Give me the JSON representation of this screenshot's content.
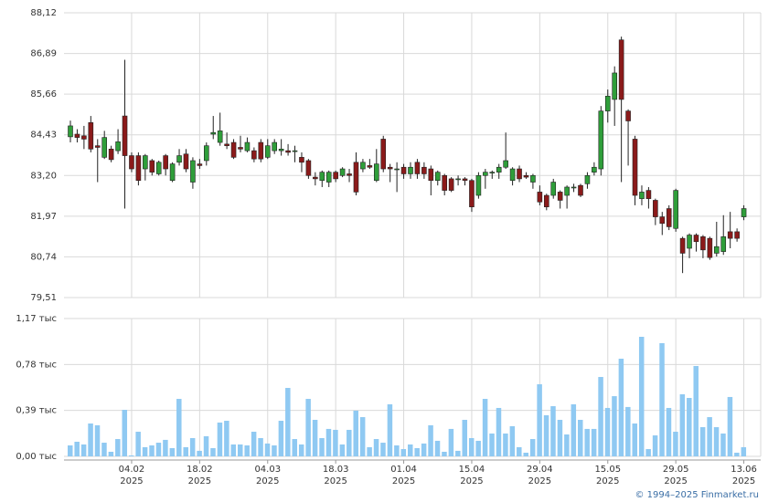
{
  "chart_data": [
    {
      "type": "candlestick",
      "up_color": "#2f9e3a",
      "down_color": "#8b1a1a",
      "grid": true,
      "ylim": [
        79.51,
        88.12
      ],
      "yticks": [
        {
          "value": 88.12,
          "label": "88,12"
        },
        {
          "value": 86.89,
          "label": "86,89"
        },
        {
          "value": 85.66,
          "label": "85,66"
        },
        {
          "value": 84.43,
          "label": "84,43"
        },
        {
          "value": 83.2,
          "label": "83,20"
        },
        {
          "value": 81.97,
          "label": "81,97"
        },
        {
          "value": 80.74,
          "label": "80,74"
        },
        {
          "value": 79.51,
          "label": "79,51"
        }
      ],
      "open": [
        84.37,
        84.45,
        84.4,
        84.8,
        84.1,
        83.75,
        84.0,
        83.95,
        85.0,
        83.8,
        83.8,
        83.4,
        83.65,
        83.25,
        83.8,
        83.05,
        83.6,
        83.85,
        83.0,
        83.55,
        83.65,
        84.45,
        84.2,
        84.15,
        84.2,
        84.05,
        83.95,
        83.95,
        84.2,
        83.75,
        83.95,
        83.95,
        83.95,
        83.95,
        83.75,
        83.65,
        83.15,
        83.05,
        83.0,
        83.3,
        83.2,
        83.25,
        83.6,
        83.4,
        83.5,
        83.05,
        84.3,
        83.45,
        83.4,
        83.45,
        83.25,
        83.6,
        83.45,
        83.4,
        83.05,
        83.2,
        83.1,
        83.1,
        83.1,
        83.05,
        82.6,
        83.2,
        83.3,
        83.3,
        83.45,
        83.05,
        83.4,
        83.2,
        83.0,
        82.7,
        82.6,
        82.6,
        82.7,
        82.6,
        82.85,
        82.9,
        82.95,
        83.3,
        83.4,
        85.15,
        85.5,
        87.3,
        85.15,
        84.3,
        82.5,
        82.75,
        82.45,
        81.95,
        82.2,
        81.6,
        81.3,
        81.0,
        81.4,
        81.35,
        81.3,
        80.85,
        80.9,
        81.5,
        81.5,
        81.95
      ],
      "high": [
        84.86,
        84.6,
        84.7,
        85.0,
        84.3,
        84.55,
        84.1,
        84.6,
        86.7,
        83.9,
        83.9,
        83.85,
        83.7,
        83.65,
        83.85,
        83.6,
        84.0,
        84.0,
        83.75,
        83.7,
        84.2,
        85.0,
        85.1,
        84.5,
        84.3,
        84.4,
        84.35,
        84.05,
        84.3,
        84.3,
        84.3,
        84.3,
        84.15,
        84.1,
        83.9,
        83.7,
        83.3,
        83.35,
        83.35,
        83.35,
        83.45,
        83.4,
        83.9,
        83.7,
        83.7,
        84.0,
        84.4,
        83.55,
        83.6,
        83.55,
        83.6,
        83.7,
        83.6,
        83.5,
        83.35,
        83.25,
        83.15,
        83.2,
        83.15,
        83.1,
        83.3,
        83.4,
        83.35,
        83.55,
        84.5,
        83.45,
        83.5,
        83.3,
        83.25,
        82.9,
        82.65,
        83.1,
        82.75,
        82.9,
        82.95,
        82.95,
        83.3,
        83.6,
        85.3,
        85.8,
        86.5,
        87.4,
        85.2,
        84.4,
        82.9,
        82.85,
        82.5,
        82.1,
        82.3,
        82.8,
        81.35,
        81.45,
        81.45,
        81.4,
        81.35,
        81.8,
        82.0,
        82.1,
        81.6,
        82.3
      ],
      "low": [
        84.2,
        84.2,
        84.0,
        83.9,
        83.0,
        83.7,
        83.6,
        83.85,
        82.2,
        83.3,
        82.9,
        83.05,
        83.2,
        83.2,
        83.2,
        83.0,
        83.5,
        83.3,
        82.8,
        83.4,
        83.5,
        84.3,
        84.1,
        84.0,
        83.7,
        83.9,
        83.9,
        83.6,
        83.6,
        83.7,
        83.85,
        83.8,
        83.8,
        83.6,
        83.3,
        83.1,
        82.9,
        82.85,
        82.85,
        83.0,
        83.15,
        83.0,
        82.6,
        83.3,
        83.4,
        83.0,
        83.3,
        83.0,
        82.7,
        83.1,
        83.1,
        83.1,
        83.1,
        82.6,
        82.9,
        82.6,
        82.7,
        82.9,
        82.9,
        82.1,
        82.5,
        82.8,
        83.1,
        83.1,
        83.4,
        82.9,
        83.0,
        83.1,
        82.8,
        82.3,
        82.15,
        82.5,
        82.2,
        82.2,
        82.7,
        82.55,
        82.8,
        83.2,
        83.2,
        84.8,
        84.7,
        83.0,
        83.5,
        82.3,
        82.3,
        82.2,
        81.7,
        81.4,
        81.55,
        81.5,
        80.25,
        80.7,
        80.9,
        80.7,
        80.65,
        80.75,
        80.8,
        81.0,
        81.2,
        81.85
      ],
      "close": [
        84.7,
        84.35,
        84.3,
        84.0,
        84.05,
        84.35,
        83.68,
        84.22,
        83.8,
        83.4,
        83.05,
        83.8,
        83.3,
        83.6,
        83.4,
        83.55,
        83.8,
        83.4,
        83.65,
        83.5,
        84.1,
        84.5,
        84.55,
        84.1,
        83.75,
        84.0,
        84.2,
        83.7,
        83.7,
        84.1,
        84.2,
        84.0,
        83.9,
        83.95,
        83.6,
        83.2,
        83.1,
        83.3,
        83.3,
        83.1,
        83.4,
        83.2,
        82.7,
        83.6,
        83.45,
        83.55,
        83.4,
        83.4,
        83.4,
        83.25,
        83.45,
        83.25,
        83.25,
        83.05,
        83.3,
        82.75,
        82.75,
        83.1,
        83.05,
        82.25,
        83.2,
        83.3,
        83.3,
        83.45,
        83.65,
        83.4,
        83.1,
        83.15,
        83.2,
        82.4,
        82.25,
        83.0,
        82.45,
        82.85,
        82.85,
        82.6,
        83.2,
        83.45,
        85.15,
        85.6,
        86.3,
        85.5,
        84.85,
        82.6,
        82.7,
        82.5,
        81.95,
        81.75,
        81.65,
        82.75,
        80.85,
        81.4,
        81.2,
        80.95,
        80.72,
        81.05,
        81.35,
        81.3,
        81.3,
        82.2
      ]
    },
    {
      "type": "bar",
      "color": "#8fc9f2",
      "grid": true,
      "ylim": [
        0,
        1170
      ],
      "yticks": [
        {
          "value": 0,
          "label": "0,00 тыс"
        },
        {
          "value": 390,
          "label": "0,39 тыс"
        },
        {
          "value": 780,
          "label": "0,78 тыс"
        },
        {
          "value": 1170,
          "label": "1,17 тыс"
        }
      ],
      "categories": [
        null,
        null,
        null,
        null,
        null,
        null,
        null,
        null,
        null,
        "04.02",
        null,
        null,
        null,
        null,
        null,
        null,
        null,
        null,
        null,
        "18.02",
        null,
        null,
        null,
        null,
        null,
        null,
        null,
        null,
        null,
        "04.03",
        null,
        null,
        null,
        null,
        null,
        null,
        null,
        null,
        null,
        "18.03",
        null,
        null,
        null,
        null,
        null,
        null,
        null,
        null,
        null,
        "01.04",
        null,
        null,
        null,
        null,
        null,
        null,
        null,
        null,
        null,
        "15.04",
        null,
        null,
        null,
        null,
        null,
        null,
        null,
        null,
        null,
        "29.04",
        null,
        null,
        null,
        null,
        null,
        null,
        null,
        null,
        null,
        "15.05",
        null,
        null,
        null,
        null,
        null,
        null,
        null,
        null,
        null,
        "29.05",
        null,
        null,
        null,
        null,
        null,
        null,
        null,
        null,
        null,
        "13.06"
      ],
      "category_years": [
        null,
        null,
        null,
        null,
        null,
        null,
        null,
        null,
        null,
        "2025",
        null,
        null,
        null,
        null,
        null,
        null,
        null,
        null,
        null,
        "2025",
        null,
        null,
        null,
        null,
        null,
        null,
        null,
        null,
        null,
        "2025",
        null,
        null,
        null,
        null,
        null,
        null,
        null,
        null,
        null,
        "2025",
        null,
        null,
        null,
        null,
        null,
        null,
        null,
        null,
        null,
        "2025",
        null,
        null,
        null,
        null,
        null,
        null,
        null,
        null,
        null,
        "2025",
        null,
        null,
        null,
        null,
        null,
        null,
        null,
        null,
        null,
        "2025",
        null,
        null,
        null,
        null,
        null,
        null,
        null,
        null,
        null,
        "2025",
        null,
        null,
        null,
        null,
        null,
        null,
        null,
        null,
        null,
        "2025",
        null,
        null,
        null,
        null,
        null,
        null,
        null,
        null,
        null,
        "2025"
      ],
      "values": [
        93,
        124,
        101,
        279,
        264,
        116,
        39,
        147,
        395,
        8,
        209,
        78,
        93,
        116,
        140,
        70,
        488,
        78,
        155,
        47,
        171,
        70,
        287,
        302,
        101,
        101,
        93,
        209,
        155,
        109,
        93,
        302,
        581,
        147,
        101,
        488,
        310,
        155,
        233,
        225,
        101,
        225,
        388,
        333,
        78,
        147,
        116,
        442,
        93,
        62,
        101,
        70,
        109,
        264,
        132,
        39,
        233,
        47,
        310,
        155,
        132,
        488,
        194,
        411,
        194,
        256,
        78,
        31,
        147,
        612,
        349,
        426,
        310,
        186,
        442,
        310,
        233,
        233,
        674,
        411,
        511,
        829,
        419,
        279,
        1015,
        62,
        178,
        961,
        411,
        209,
        527,
        496,
        767,
        248,
        333,
        248,
        194,
        504,
        31,
        78
      ]
    }
  ],
  "footer": "© 1994–2025 Finmarket.ru"
}
